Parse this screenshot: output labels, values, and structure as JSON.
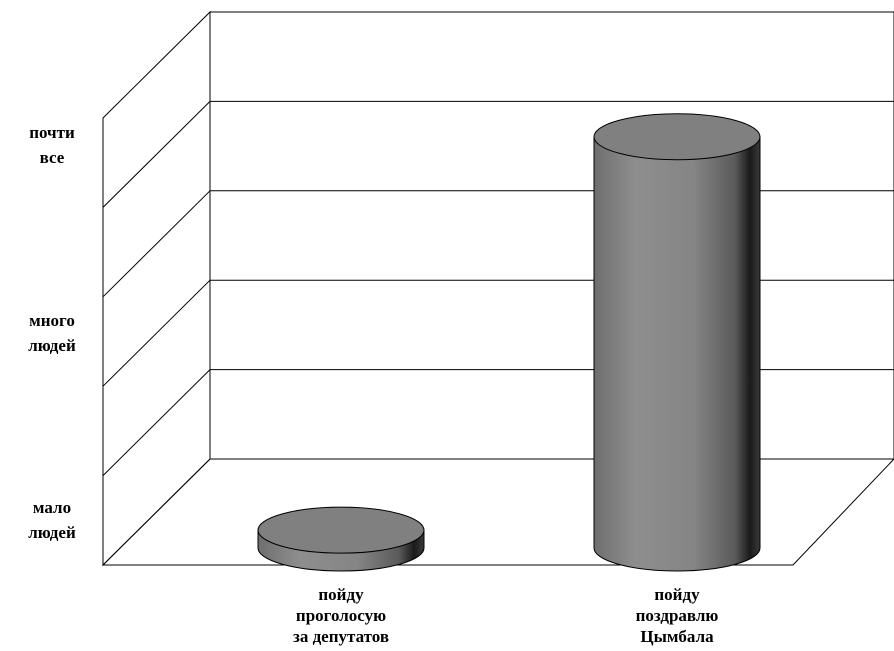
{
  "chart_data": {
    "type": "bar",
    "style": "3d-cylinder",
    "categories": [
      "пойду\nпроголосую\nза депутатов",
      "пойду\nпоздравлю\nЦымбала"
    ],
    "values": [
      2,
      46
    ],
    "ylim": [
      0,
      50
    ],
    "y_tick_labels": [
      {
        "value": 5,
        "label": "мало\nлюдей"
      },
      {
        "value": 26,
        "label": "много\nлюдей"
      },
      {
        "value": 47,
        "label": "почти\nвсе"
      }
    ],
    "grid": true,
    "legend": "none",
    "bar_color": "#8c8c8c"
  }
}
